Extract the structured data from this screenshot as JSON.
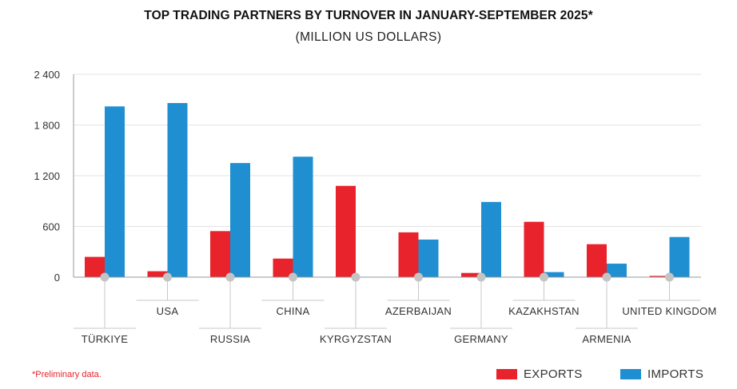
{
  "title": "TOP TRADING PARTNERS BY TURNOVER IN JANUARY-SEPTEMBER 2025*",
  "subtitle": "(MILLION US DOLLARS)",
  "footnote": "*Preliminary data.",
  "colors": {
    "exports": "#e8232b",
    "imports": "#1f8fd1"
  },
  "legend": {
    "exports": "EXPORTS",
    "imports": "IMPORTS"
  },
  "chart_data": {
    "type": "bar",
    "categories": [
      "TÜRKIYE",
      "USA",
      "RUSSIA",
      "CHINA",
      "KYRGYZSTAN",
      "AZERBAIJAN",
      "GERMANY",
      "KAZAKHSTAN",
      "ARMENIA",
      "UNITED KINGDOM"
    ],
    "series": [
      {
        "name": "EXPORTS",
        "values": [
          240,
          70,
          545,
          220,
          1080,
          530,
          50,
          655,
          390,
          15
        ]
      },
      {
        "name": "IMPORTS",
        "values": [
          2020,
          2060,
          1350,
          1425,
          5,
          445,
          890,
          60,
          160,
          475
        ]
      }
    ],
    "ylim": [
      0,
      2400
    ],
    "yticks": [
      0,
      600,
      1200,
      1800,
      2400
    ],
    "ytick_labels": [
      "0",
      "600",
      "1 200",
      "1 800",
      "2 400"
    ],
    "grid": true,
    "legend_position": "bottom-right"
  }
}
